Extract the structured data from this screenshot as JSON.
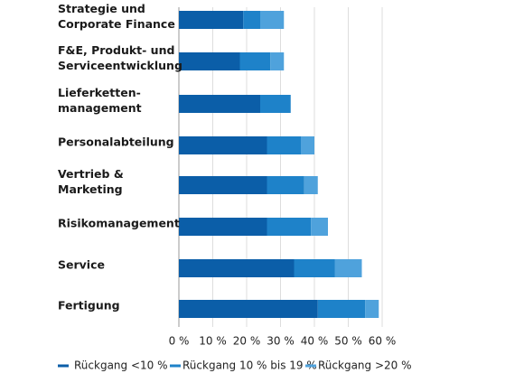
{
  "chart_data": {
    "type": "stacked-barh",
    "categories": [
      "Strategie und\nCorporate Finance",
      "F&E, Produkt- und\nServiceentwicklung",
      "Lieferketten-\nmanagement",
      "Personalabteilung",
      "Vertrieb & Marketing",
      "Risikomanagement",
      "Service",
      "Fertigung"
    ],
    "series": [
      {
        "name": "Rückgang <10 %",
        "color": "#0b5ea8",
        "values": [
          19,
          18,
          24,
          26,
          26,
          26,
          34,
          41
        ]
      },
      {
        "name": "Rückgang 10 % bis 19 %",
        "color": "#1e82c9",
        "values": [
          5,
          9,
          9,
          10,
          11,
          13,
          12,
          14
        ]
      },
      {
        "name": "Rückgang >20 %",
        "color": "#4fa2dc",
        "values": [
          7,
          4,
          0,
          4,
          4,
          5,
          8,
          4
        ]
      }
    ],
    "xlim": [
      0,
      60
    ],
    "xticks": [
      {
        "value": 0,
        "label": "0 %"
      },
      {
        "value": 10,
        "label": "10 %"
      },
      {
        "value": 20,
        "label": "20 %"
      },
      {
        "value": 30,
        "label": "30 %"
      },
      {
        "value": 40,
        "label": "40 %"
      },
      {
        "value": 50,
        "label": "50 %"
      },
      {
        "value": 60,
        "label": "60 %"
      }
    ],
    "grid": true
  }
}
